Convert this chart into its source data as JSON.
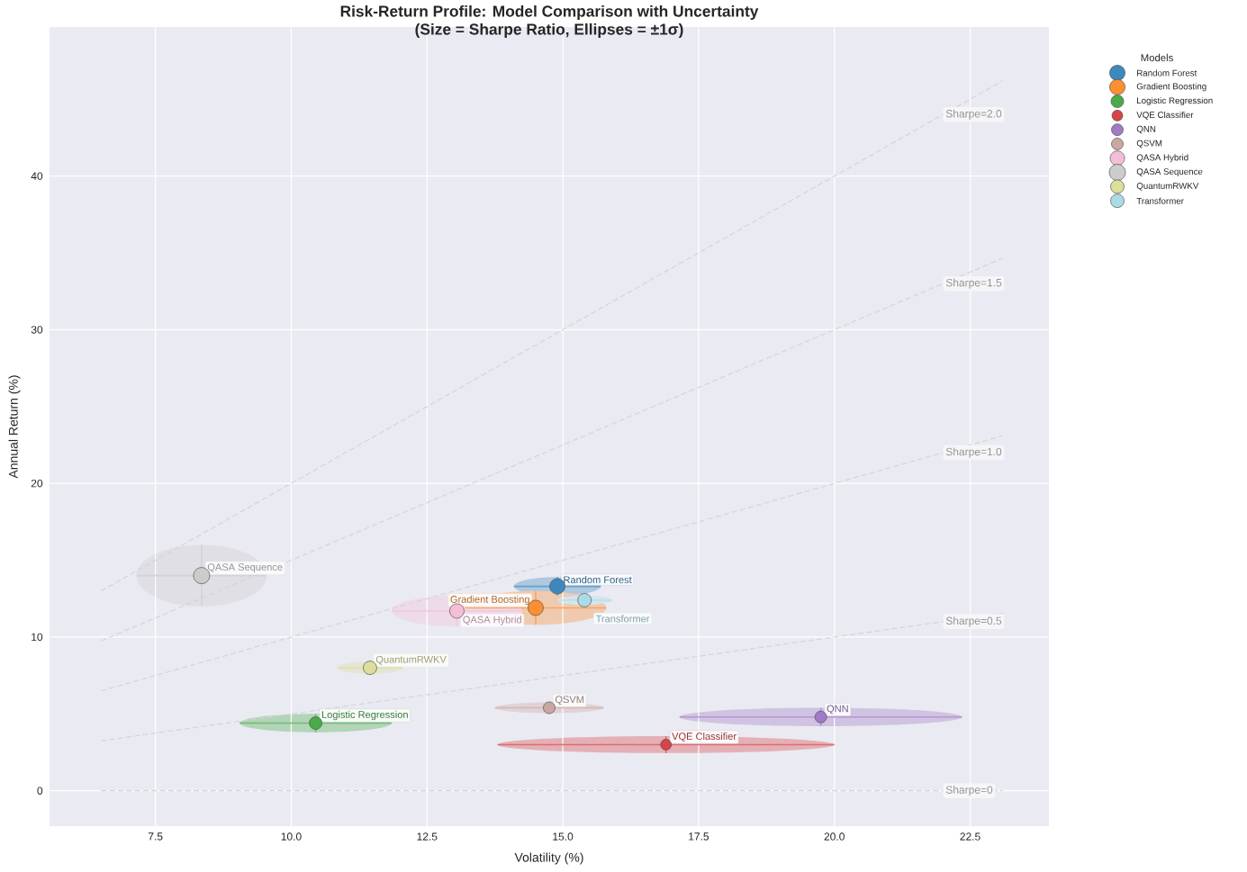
{
  "chart_data": {
    "type": "bubble",
    "title": "Risk-Return Profile: Model Comparison with Uncertainty",
    "subtitle": "(Size = Sharpe Ratio, Ellipses = ±1σ)",
    "xlabel": "Volatility (%)",
    "ylabel": "Annual Return (%)",
    "legend_title": "Models",
    "legend": "top right",
    "grid": true,
    "xlim": [
      5.55,
      23.95
    ],
    "ylim": [
      -2.3,
      49.7
    ],
    "xticks": [
      7.5,
      {
        "value": 10,
        "label": "10.0"
      },
      12.5,
      {
        "value": 15,
        "label": "15.0"
      },
      17.5,
      {
        "value": 20,
        "label": "20.0"
      },
      22.5
    ],
    "yticks": [
      0,
      10,
      20,
      30,
      40
    ],
    "series": [
      {
        "type": "line",
        "name": "Sharpe=0",
        "color": "#d4d4d8",
        "line_style": "dashed",
        "marker": "none",
        "x": [
          6.5,
          22,
          23.1
        ],
        "values": [
          0,
          0,
          0
        ]
      },
      {
        "type": "line",
        "name": "Sharpe=0.5",
        "color": "#d4d4d8",
        "line_style": "dashed",
        "marker": "none",
        "x": [
          6.5,
          22,
          23.1
        ],
        "values": [
          3.25,
          11,
          11.55
        ]
      },
      {
        "type": "line",
        "name": "Sharpe=1.0",
        "color": "#d4d4d8",
        "line_style": "dashed",
        "marker": "none",
        "x": [
          6.5,
          22,
          23.1
        ],
        "values": [
          6.5,
          22,
          23.1
        ]
      },
      {
        "type": "line",
        "name": "Sharpe=1.5",
        "color": "#d4d4d8",
        "line_style": "dashed",
        "marker": "none",
        "x": [
          6.5,
          22,
          23.1
        ],
        "values": [
          9.75,
          33,
          34.65
        ]
      },
      {
        "type": "line",
        "name": "Sharpe=2.0",
        "color": "#d4d4d8",
        "line_style": "dashed",
        "marker": "none",
        "x": [
          6.5,
          22,
          23.1
        ],
        "values": [
          13,
          44,
          46.2
        ]
      },
      {
        "type": "bubble",
        "name": "Random Forest",
        "color": "#3d88bd",
        "marker": "circle",
        "x": [
          14.9
        ],
        "values": [
          13.3
        ],
        "xerrors": [
          0.8
        ],
        "errors": [
          0.6
        ],
        "sizes": [
          0.89
        ]
      },
      {
        "type": "bubble",
        "name": "Gradient Boosting",
        "color": "#fc8f2f",
        "marker": "circle",
        "x": [
          14.5
        ],
        "values": [
          11.9
        ],
        "xerrors": [
          1.3
        ],
        "errors": [
          1.1
        ],
        "sizes": [
          0.89
        ]
      },
      {
        "type": "bubble",
        "name": "Logistic Regression",
        "color": "#49ab4a",
        "marker": "circle",
        "x": [
          10.45
        ],
        "values": [
          4.4
        ],
        "xerrors": [
          1.4
        ],
        "errors": [
          0.6
        ],
        "sizes": [
          0.6
        ]
      },
      {
        "type": "bubble",
        "name": "VQE Classifier",
        "color": "#d94446",
        "marker": "circle",
        "x": [
          16.9
        ],
        "values": [
          3.0
        ],
        "xerrors": [
          3.1
        ],
        "errors": [
          0.55
        ],
        "sizes": [
          0.44
        ]
      },
      {
        "type": "bubble",
        "name": "QNN",
        "color": "#a17bc5",
        "marker": "circle",
        "x": [
          19.75
        ],
        "values": [
          4.8
        ],
        "xerrors": [
          2.6
        ],
        "errors": [
          0.6
        ],
        "sizes": [
          0.52
        ]
      },
      {
        "type": "bubble",
        "name": "QSVM",
        "color": "#caa8a1",
        "marker": "circle",
        "x": [
          14.75
        ],
        "values": [
          5.4
        ],
        "xerrors": [
          1.0
        ],
        "errors": [
          0.35
        ],
        "sizes": [
          0.52
        ]
      },
      {
        "type": "bubble",
        "name": "QASA Hybrid",
        "color": "#f5bed7",
        "marker": "circle",
        "x": [
          13.05
        ],
        "values": [
          11.7
        ],
        "xerrors": [
          1.2
        ],
        "errors": [
          1.0
        ],
        "sizes": [
          0.79
        ]
      },
      {
        "type": "bubble",
        "name": "QASA Sequence",
        "color": "#cccccd",
        "marker": "circle",
        "x": [
          8.35
        ],
        "values": [
          14.0
        ],
        "xerrors": [
          1.2
        ],
        "errors": [
          2.0
        ],
        "sizes": [
          1
        ]
      },
      {
        "type": "bubble",
        "name": "QuantumRWKV",
        "color": "#dddd9c",
        "marker": "circle",
        "x": [
          11.45
        ],
        "values": [
          8.0
        ],
        "xerrors": [
          0.6
        ],
        "errors": [
          0.4
        ],
        "sizes": [
          0.69
        ]
      },
      {
        "type": "bubble",
        "name": "Transformer",
        "color": "#a9dce6",
        "marker": "circle",
        "x": [
          15.4
        ],
        "values": [
          12.4
        ],
        "xerrors": [
          0.5
        ],
        "errors": [
          0.3
        ],
        "sizes": [
          0.69
        ]
      }
    ]
  }
}
